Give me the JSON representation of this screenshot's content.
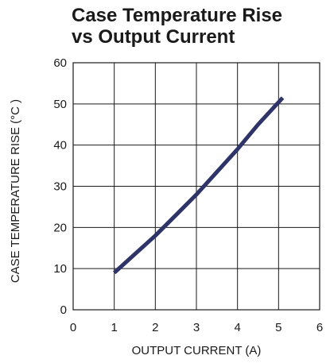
{
  "chart_data": {
    "type": "line",
    "title_line1": "Case Temperature Rise",
    "title_line2": "vs Output Current",
    "xlabel": "OUTPUT CURRENT (A)",
    "ylabel": "CASE TEMPERATURE RISE (°C )",
    "xlim": [
      0,
      6
    ],
    "ylim": [
      0,
      60
    ],
    "xticks": [
      "0",
      "1",
      "2",
      "3",
      "4",
      "5",
      "6"
    ],
    "yticks": [
      "0",
      "10",
      "20",
      "30",
      "40",
      "50",
      "60"
    ],
    "grid": true,
    "series": [
      {
        "color": "#2e3467",
        "x": [
          1,
          1.5,
          2,
          2.5,
          3,
          3.5,
          4,
          4.5,
          5.1
        ],
        "y": [
          9,
          13.5,
          18,
          23,
          28,
          33.5,
          39,
          45,
          51.5
        ]
      }
    ]
  }
}
